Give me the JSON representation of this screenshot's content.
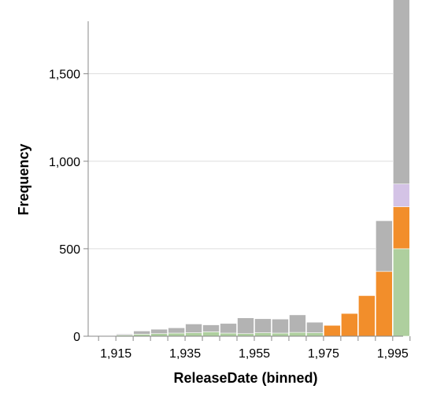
{
  "chart_data": {
    "type": "bar",
    "stacked": true,
    "xlabel": "ReleaseDate (binned)",
    "ylabel": "Frequency",
    "bin_width": 5,
    "bins_start": [
      1910,
      1915,
      1920,
      1925,
      1930,
      1935,
      1940,
      1945,
      1950,
      1955,
      1960,
      1965,
      1970,
      1975,
      1980,
      1985,
      1990,
      1995
    ],
    "x_ticks": [
      1915,
      1935,
      1955,
      1975,
      1995
    ],
    "x_tick_labels": [
      "1,915",
      "1,935",
      "1,955",
      "1,975",
      "1,995"
    ],
    "xlim": [
      1907,
      1998
    ],
    "ylim": [
      0,
      1800
    ],
    "y_ticks": [
      0,
      500,
      1000,
      1500
    ],
    "y_tick_labels": [
      "0",
      "500",
      "1,000",
      "1,500"
    ],
    "grid": true,
    "series": [
      {
        "color": "#aecf9e",
        "values": [
          3,
          6,
          12,
          15,
          18,
          20,
          25,
          18,
          15,
          20,
          18,
          22,
          20,
          0,
          0,
          0,
          0,
          500
        ]
      },
      {
        "color": "#f28e2b",
        "values": [
          0,
          0,
          0,
          0,
          0,
          0,
          0,
          0,
          0,
          0,
          0,
          0,
          0,
          62,
          130,
          232,
          370,
          240
        ]
      },
      {
        "color": "#d4c3e6",
        "values": [
          0,
          0,
          0,
          0,
          0,
          0,
          0,
          0,
          0,
          0,
          0,
          0,
          0,
          0,
          0,
          0,
          0,
          130
        ]
      },
      {
        "color": "#b3b3b3",
        "values": [
          2,
          6,
          18,
          25,
          30,
          50,
          40,
          55,
          90,
          80,
          80,
          100,
          60,
          0,
          0,
          0,
          290,
          1150
        ]
      }
    ]
  }
}
